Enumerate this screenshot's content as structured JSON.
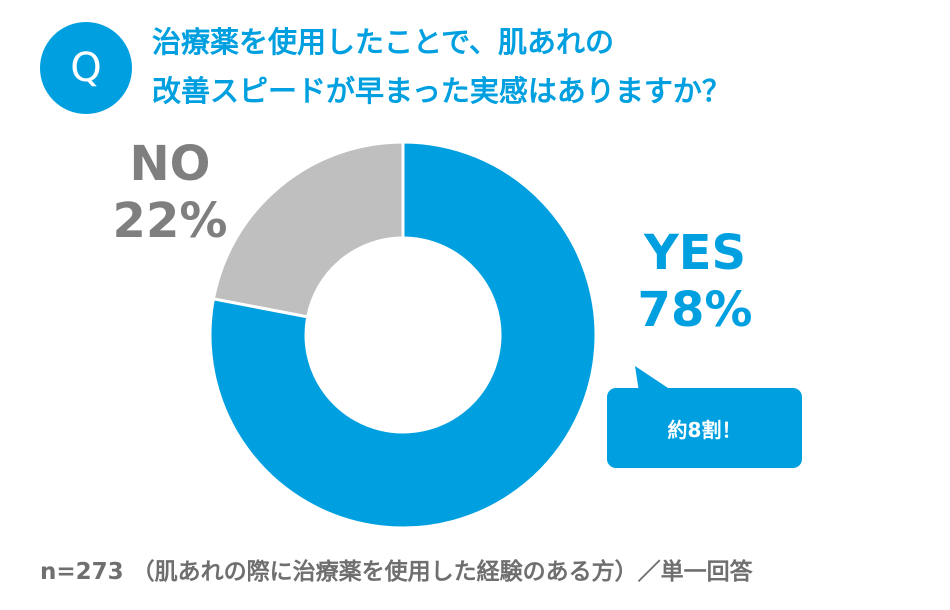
{
  "badge": {
    "letter": "Q"
  },
  "question": {
    "line1": "治療薬を使用したことで、肌あれの",
    "line2": "改善スピードが早まった実感はありますか？"
  },
  "chart_data": {
    "type": "pie",
    "variant": "donut",
    "slices": [
      {
        "label": "YES",
        "value": 78,
        "display": "78%",
        "color": "#00a0e0"
      },
      {
        "label": "NO",
        "value": 22,
        "display": "22%",
        "color": "#bfbfbf"
      }
    ],
    "start": "12 o'clock",
    "direction": "clockwise",
    "legend": "none"
  },
  "callout": {
    "text": "約8割！",
    "color": "#00a0e0"
  },
  "footnote": {
    "text": "n=273 （肌あれの際に治療薬を使用した経験のある方）／単一回答"
  },
  "colors": {
    "accent": "#00a0e0",
    "no_slice": "#bfbfbf",
    "no_label": "#7f7f7f",
    "footnote": "#6f6f6f"
  }
}
